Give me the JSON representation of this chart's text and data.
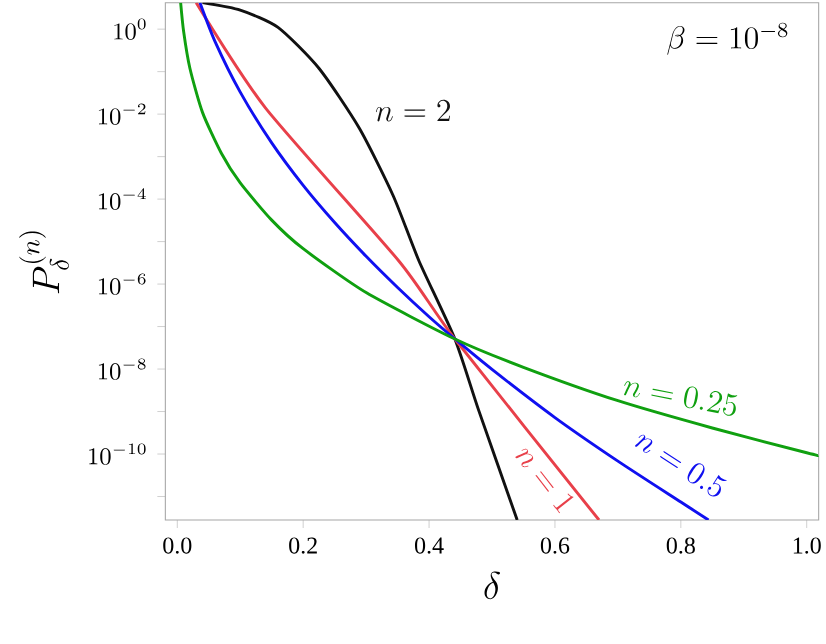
{
  "chart_data": {
    "type": "line",
    "xlabel": "\\delta",
    "ylabel": "P_\\delta^{(n)}",
    "annotations": [
      "\\beta = 10^{-8}"
    ],
    "log": "y",
    "legend": false,
    "grid": false,
    "marker": "none",
    "line_style": "solid",
    "xlim": [
      -0.019,
      1.019
    ],
    "ylim": [
      2.8e-12,
      4.2
    ],
    "xticks": [
      {
        "value": 0,
        "label": "0.0"
      },
      {
        "value": 0.2,
        "label": "0.2"
      },
      {
        "value": 0.4,
        "label": "0.4"
      },
      {
        "value": 0.6,
        "label": "0.6"
      },
      {
        "value": 0.8,
        "label": "0.8"
      },
      {
        "value": 1,
        "label": "1.0"
      }
    ],
    "yticks": [
      {
        "value": 1,
        "label": "10^{0}"
      },
      {
        "value": 0.1,
        "label": null
      },
      {
        "value": 0.01,
        "label": "10^{-2}"
      },
      {
        "value": 0.001,
        "label": null
      },
      {
        "value": 0.0001,
        "label": "10^{-4}"
      },
      {
        "value": 1e-05,
        "label": null
      },
      {
        "value": 1e-06,
        "label": "10^{-6}"
      },
      {
        "value": 1e-07,
        "label": null
      },
      {
        "value": 1e-08,
        "label": "10^{-8}"
      },
      {
        "value": 1e-09,
        "label": null
      },
      {
        "value": 1e-10,
        "label": "10^{-10}"
      },
      {
        "value": 1e-11,
        "label": null
      }
    ],
    "series": [
      {
        "name": "n = 2",
        "color": "#111111",
        "x": [
          0.04,
          0.1,
          0.16,
          0.225,
          0.289,
          0.343,
          0.384,
          0.441,
          0.479,
          0.54
        ],
        "values": [
          4.2,
          2.8,
          1.1,
          0.12,
          0.0047,
          0.00012,
          3.5e-06,
          5.1e-08,
          1.05e-09,
          2.8e-12
        ]
      },
      {
        "name": "n = 1",
        "color": "#e8404a",
        "x": [
          0.03,
          0.14,
          0.352,
          0.441,
          0.67
        ],
        "values": [
          4.2,
          0.0141,
          3.5e-06,
          5.1e-08,
          2.8e-12
        ]
      },
      {
        "name": "n = 0.5",
        "color": "#1010f0",
        "x": [
          0.036,
          0.06,
          0.1,
          0.15,
          0.2,
          0.25,
          0.3,
          0.35,
          0.4,
          0.441,
          0.5,
          0.6,
          0.7,
          0.8,
          0.844
        ],
        "values": [
          4.2,
          0.51,
          0.033,
          0.0021,
          0.00021,
          2.8e-05,
          4.5e-06,
          8.3e-07,
          1.7e-07,
          5.1e-08,
          9.8e-09,
          7.2e-10,
          6.8e-11,
          7.4e-12,
          2.8e-12
        ]
      },
      {
        "name": "n = 0.25",
        "color": "#10a010",
        "x": [
          0.0053,
          0.01,
          0.02,
          0.04,
          0.07,
          0.1,
          0.15,
          0.2,
          0.3,
          0.441,
          0.55,
          0.7,
          0.85,
          1.0,
          1.019
        ],
        "values": [
          4.2,
          0.89,
          0.12,
          0.011,
          0.0012,
          0.00024,
          3.2e-05,
          6.8e-06,
          6.3e-07,
          5.1e-08,
          1.1e-08,
          1.8e-09,
          4.1e-10,
          1.07e-10,
          9.1e-11
        ]
      }
    ]
  }
}
